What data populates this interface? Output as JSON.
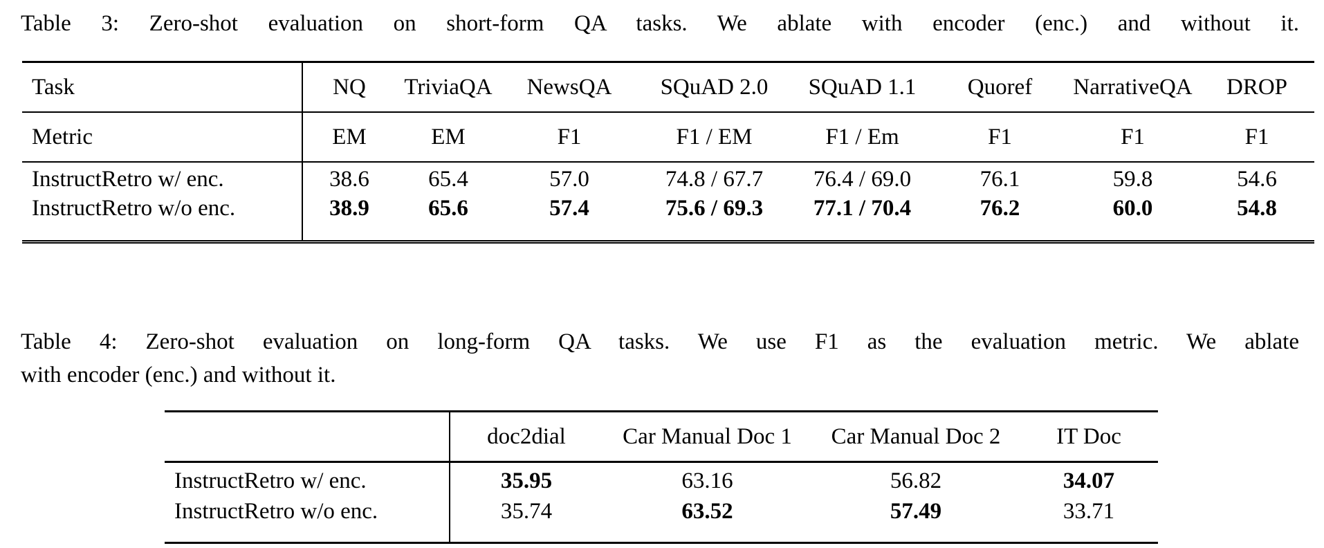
{
  "page": {
    "background": "#ffffff",
    "text_color": "#000000",
    "rule_color": "#000000"
  },
  "table3": {
    "caption": "Table 3: Zero-shot evaluation on short-form QA tasks. We ablate with encoder (enc.) and without it.",
    "corner_label": "Task",
    "columns": [
      "NQ",
      "TriviaQA",
      "NewsQA",
      "SQuAD 2.0",
      "SQuAD 1.1",
      "Quoref",
      "NarrativeQA",
      "DROP"
    ],
    "metric_label": "Metric",
    "metrics": [
      "EM",
      "EM",
      "F1",
      "F1 / EM",
      "F1 / Em",
      "F1",
      "F1",
      "F1"
    ],
    "rows": [
      {
        "label": "InstructRetro w/ enc.",
        "values": [
          "38.6",
          "65.4",
          "57.0",
          "74.8 / 67.7",
          "76.4 / 69.0",
          "76.1",
          "59.8",
          "54.6"
        ],
        "bold": [
          false,
          false,
          false,
          false,
          false,
          false,
          false,
          false
        ]
      },
      {
        "label": "InstructRetro w/o enc.",
        "values": [
          "38.9",
          "65.6",
          "57.4",
          "75.6 / 69.3",
          "77.1 / 70.4",
          "76.2",
          "60.0",
          "54.8"
        ],
        "bold": [
          true,
          true,
          true,
          true,
          true,
          true,
          true,
          true
        ]
      }
    ]
  },
  "table4": {
    "caption_line1": "Table 4: Zero-shot evaluation on long-form QA tasks. We use F1 as the evaluation metric. We ablate",
    "caption_line2": "with encoder (enc.) and without it.",
    "columns": [
      "doc2dial",
      "Car Manual Doc 1",
      "Car Manual Doc 2",
      "IT Doc"
    ],
    "rows": [
      {
        "label": "InstructRetro w/ enc.",
        "values": [
          "35.95",
          "63.16",
          "56.82",
          "34.07"
        ],
        "bold": [
          true,
          false,
          false,
          true
        ]
      },
      {
        "label": "InstructRetro w/o enc.",
        "values": [
          "35.74",
          "63.52",
          "57.49",
          "33.71"
        ],
        "bold": [
          false,
          true,
          true,
          false
        ]
      }
    ]
  }
}
